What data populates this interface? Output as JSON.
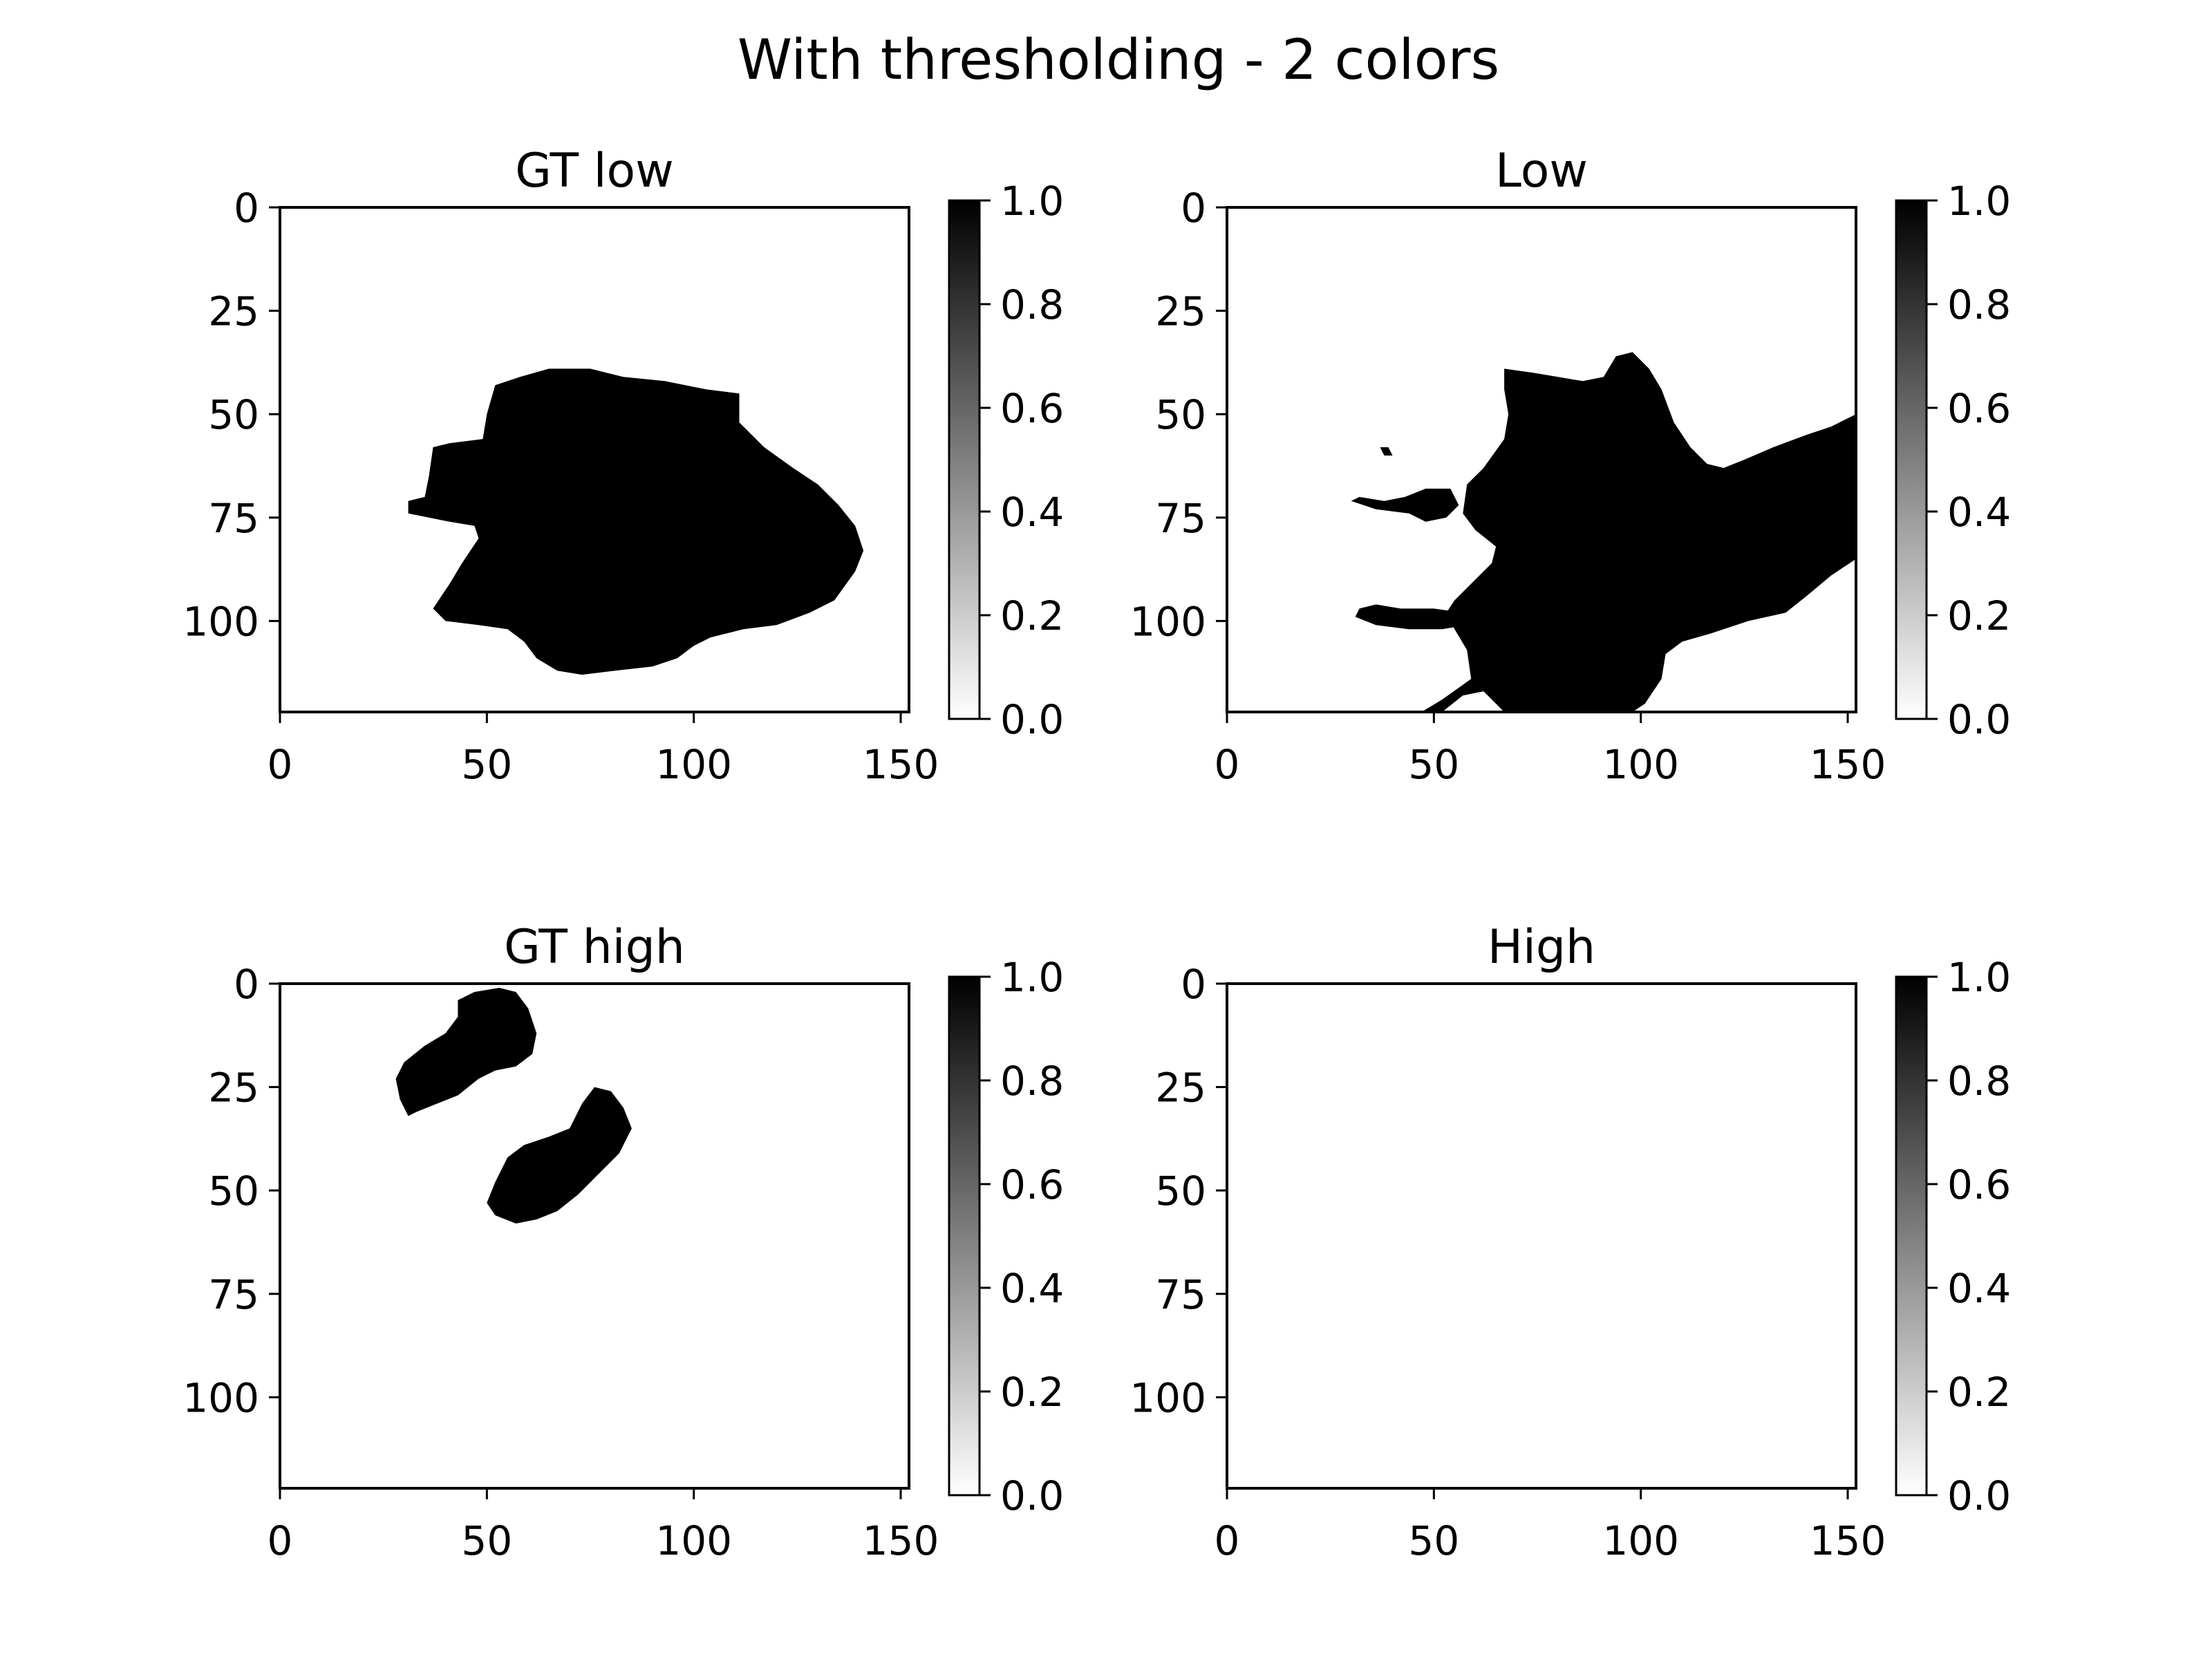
{
  "chart_data": {
    "type": "heatmap",
    "suptitle": "With thresholding - 2 colors",
    "colormap": "gray_r",
    "colors": {
      "background": "#ffffff",
      "mask": "#000000",
      "axis": "#000000"
    },
    "xlim": [
      0,
      152
    ],
    "ylim": [
      122,
      0
    ],
    "xticks": [
      0,
      50,
      100,
      150
    ],
    "yticks": [
      0,
      25,
      50,
      75,
      100
    ],
    "colorbar": {
      "ticks": [
        0.0,
        0.2,
        0.4,
        0.6,
        0.8,
        1.0
      ],
      "tick_labels": [
        "0.0",
        "0.2",
        "0.4",
        "0.6",
        "0.8",
        "1.0"
      ],
      "range": [
        0,
        1
      ]
    },
    "panels": [
      {
        "title": "GT low",
        "regions": [
          {
            "value": 1,
            "polygon": [
              [
                52,
                43
              ],
              [
                58,
                41
              ],
              [
                65,
                39
              ],
              [
                75,
                39
              ],
              [
                83,
                41
              ],
              [
                93,
                42
              ],
              [
                103,
                44
              ],
              [
                111,
                45
              ],
              [
                111,
                52
              ],
              [
                117,
                58
              ],
              [
                124,
                63
              ],
              [
                130,
                67
              ],
              [
                135,
                72
              ],
              [
                139,
                77
              ],
              [
                141,
                83
              ],
              [
                139,
                88
              ],
              [
                134,
                95
              ],
              [
                128,
                98
              ],
              [
                120,
                101
              ],
              [
                112,
                102
              ],
              [
                104,
                104
              ],
              [
                100,
                106
              ],
              [
                96,
                109
              ],
              [
                90,
                111
              ],
              [
                81,
                112
              ],
              [
                73,
                113
              ],
              [
                67,
                112
              ],
              [
                62,
                109
              ],
              [
                59,
                105
              ],
              [
                55,
                102
              ],
              [
                48,
                101
              ],
              [
                40,
                100
              ],
              [
                37,
                97
              ],
              [
                41,
                91
              ],
              [
                44,
                86
              ],
              [
                48,
                80
              ],
              [
                47,
                77
              ],
              [
                41,
                76
              ],
              [
                36,
                75
              ],
              [
                31,
                74
              ],
              [
                31,
                71
              ],
              [
                35,
                70
              ],
              [
                36,
                65
              ],
              [
                37,
                58
              ],
              [
                41,
                57
              ],
              [
                49,
                56
              ],
              [
                50,
                50
              ]
            ]
          }
        ]
      },
      {
        "title": "Low",
        "regions": [
          {
            "value": 1,
            "polygon": [
              [
                67,
                39
              ],
              [
                74,
                40
              ],
              [
                80,
                41
              ],
              [
                86,
                42
              ],
              [
                91,
                41
              ],
              [
                94,
                36
              ],
              [
                98,
                35
              ],
              [
                102,
                39
              ],
              [
                105,
                44
              ],
              [
                108,
                52
              ],
              [
                112,
                58
              ],
              [
                116,
                62
              ],
              [
                120,
                63
              ],
              [
                125,
                61
              ],
              [
                132,
                58
              ],
              [
                140,
                55
              ],
              [
                146,
                53
              ],
              [
                152,
                50
              ],
              [
                152,
                85
              ],
              [
                146,
                89
              ],
              [
                140,
                94
              ],
              [
                135,
                98
              ],
              [
                126,
                100
              ],
              [
                117,
                103
              ],
              [
                110,
                105
              ],
              [
                106,
                108
              ],
              [
                105,
                114
              ],
              [
                101,
                120
              ],
              [
                98,
                122
              ],
              [
                67,
                122
              ],
              [
                62,
                117
              ],
              [
                57,
                118
              ],
              [
                52,
                122
              ],
              [
                47,
                122
              ],
              [
                52,
                119
              ],
              [
                59,
                114
              ],
              [
                58,
                107
              ],
              [
                55,
                102
              ],
              [
                53,
                98
              ],
              [
                55,
                95
              ],
              [
                60,
                90
              ],
              [
                64,
                86
              ],
              [
                65,
                82
              ],
              [
                60,
                78
              ],
              [
                57,
                74
              ],
              [
                58,
                67
              ],
              [
                62,
                63
              ],
              [
                67,
                56
              ],
              [
                68,
                50
              ],
              [
                67,
                44
              ]
            ]
          },
          {
            "value": 1,
            "polygon": [
              [
                43,
                70
              ],
              [
                48,
                68
              ],
              [
                54,
                68
              ],
              [
                56,
                72
              ],
              [
                53,
                75
              ],
              [
                48,
                76
              ],
              [
                44,
                74
              ],
              [
                36,
                73
              ],
              [
                30,
                71
              ],
              [
                32,
                70
              ],
              [
                38,
                71
              ]
            ]
          },
          {
            "value": 1,
            "polygon": [
              [
                36,
                96
              ],
              [
                42,
                97
              ],
              [
                50,
                97
              ],
              [
                57,
                98
              ],
              [
                58,
                101
              ],
              [
                52,
                102
              ],
              [
                44,
                102
              ],
              [
                36,
                101
              ],
              [
                31,
                99
              ],
              [
                32,
                97
              ]
            ]
          },
          {
            "value": 1,
            "polygon": [
              [
                37,
                58
              ],
              [
                39,
                58
              ],
              [
                40,
                60
              ],
              [
                38,
                60
              ]
            ]
          }
        ]
      },
      {
        "title": "GT high",
        "regions": [
          {
            "value": 1,
            "polygon": [
              [
                43,
                4
              ],
              [
                47,
                2
              ],
              [
                53,
                1
              ],
              [
                57,
                2
              ],
              [
                60,
                6
              ],
              [
                62,
                12
              ],
              [
                61,
                17
              ],
              [
                57,
                20
              ],
              [
                52,
                21
              ],
              [
                48,
                23
              ],
              [
                43,
                27
              ],
              [
                38,
                29
              ],
              [
                33,
                31
              ],
              [
                31,
                32
              ],
              [
                29,
                28
              ],
              [
                28,
                23
              ],
              [
                30,
                19
              ],
              [
                35,
                15
              ],
              [
                40,
                12
              ],
              [
                43,
                8
              ]
            ]
          },
          {
            "value": 1,
            "polygon": [
              [
                73,
                29
              ],
              [
                76,
                25
              ],
              [
                80,
                26
              ],
              [
                83,
                30
              ],
              [
                85,
                35
              ],
              [
                82,
                41
              ],
              [
                77,
                46
              ],
              [
                72,
                51
              ],
              [
                67,
                55
              ],
              [
                62,
                57
              ],
              [
                57,
                58
              ],
              [
                52,
                56
              ],
              [
                50,
                53
              ],
              [
                52,
                48
              ],
              [
                55,
                42
              ],
              [
                59,
                39
              ],
              [
                65,
                37
              ],
              [
                70,
                35
              ]
            ]
          }
        ]
      },
      {
        "title": "High",
        "regions": []
      }
    ]
  }
}
